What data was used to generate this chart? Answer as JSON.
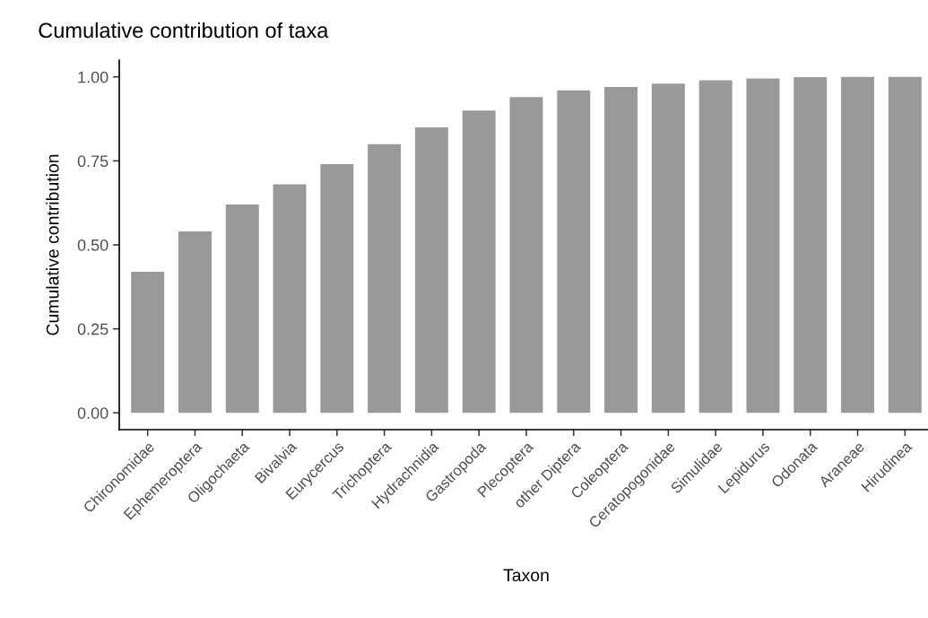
{
  "chart_data": {
    "type": "bar",
    "title": "Cumulative contribution of taxa",
    "xlabel": "Taxon",
    "ylabel": "Cumulative contribution",
    "categories": [
      "Chironomidae",
      "Ephemeroptera",
      "Oligochaeta",
      "Bivalvia",
      "Eurycercus",
      "Trichoptera",
      "Hydrachnidia",
      "Gastropoda",
      "Plecoptera",
      "other Diptera",
      "Coleoptera",
      "Ceratopogonidae",
      "Simulidae",
      "Lepidurus",
      "Odonata",
      "Araneae",
      "Hirudinea"
    ],
    "values": [
      0.42,
      0.54,
      0.62,
      0.68,
      0.74,
      0.8,
      0.85,
      0.9,
      0.94,
      0.96,
      0.97,
      0.98,
      0.99,
      0.995,
      0.999,
      1.0,
      1.0
    ],
    "color": "#999999",
    "ylim": [
      -0.05,
      1.05
    ],
    "yticks": [
      {
        "value": 0,
        "label": "0.00"
      },
      {
        "value": 0.25,
        "label": "0.25"
      },
      {
        "value": 0.5,
        "label": "0.50"
      },
      {
        "value": 0.75,
        "label": "0.75"
      },
      {
        "value": 1,
        "label": "1.00"
      }
    ],
    "grid": false
  }
}
